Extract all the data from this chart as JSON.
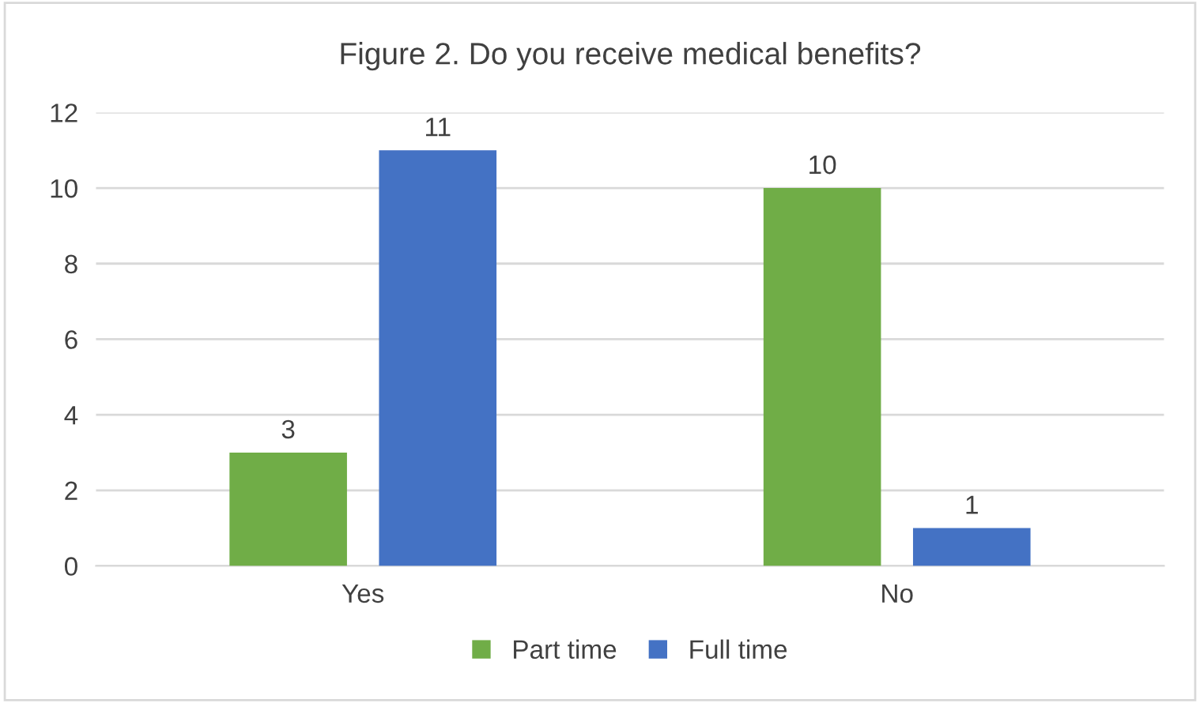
{
  "chart_data": {
    "type": "bar",
    "title": "Figure 2. Do you receive medical benefits?",
    "categories": [
      "Yes",
      "No"
    ],
    "series": [
      {
        "name": "Part time",
        "color": "#70ad47",
        "values": [
          3,
          10
        ]
      },
      {
        "name": "Full time",
        "color": "#4472c4",
        "values": [
          11,
          1
        ]
      }
    ],
    "ylim": [
      0,
      12
    ],
    "yticks": [
      0,
      2,
      4,
      6,
      8,
      10,
      12
    ],
    "grid": "y",
    "legend": "bottom",
    "data_labels": true
  }
}
